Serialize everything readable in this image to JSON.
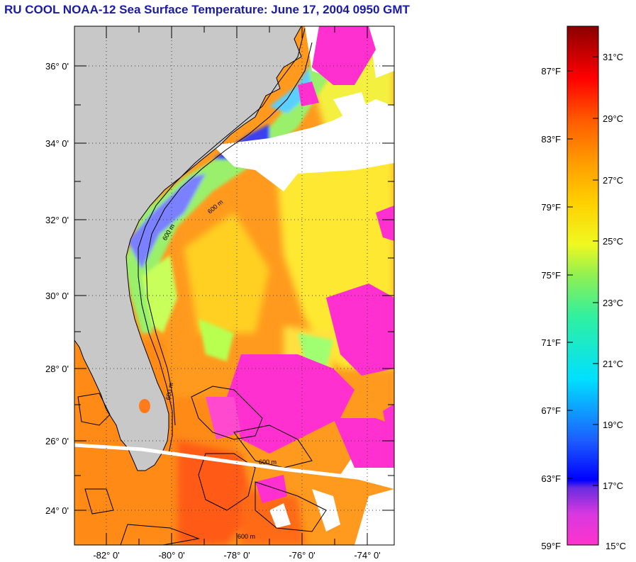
{
  "title": "RU COOL  NOAA-12  Sea Surface Temperature:  June 17, 2004 0950 GMT",
  "map": {
    "lat_labels": [
      "36° 0'",
      "34° 0'",
      "32° 0'",
      "30° 0'",
      "28° 0'",
      "26° 0'",
      "24° 0'"
    ],
    "lon_labels": [
      "-82° 0'",
      "-80° 0'",
      "-78° 0'",
      "-76° 0'",
      "-74° 0'"
    ],
    "contour_labels": [
      "600 m",
      "600 m",
      "600 m",
      "600 m",
      "600 m"
    ],
    "colors": {
      "land": "#c8c8c8",
      "cloud": "#ffffff",
      "warm": "#ff9a1e",
      "hot": "#ff5a14",
      "yellow": "#ffe830",
      "cold": "#ff2fd0"
    }
  },
  "colorbar": {
    "fahrenheit": [
      "87°F",
      "83°F",
      "79°F",
      "75°F",
      "71°F",
      "67°F",
      "63°F",
      "59°F"
    ],
    "celsius": [
      "31°C",
      "29°C",
      "27°C",
      "25°C",
      "23°C",
      "21°C",
      "19°C",
      "17°C",
      "15°C"
    ]
  }
}
